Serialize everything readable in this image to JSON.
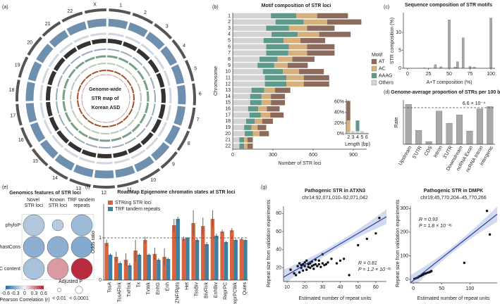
{
  "chart_data": [
    {
      "type": "circos",
      "panel_label": "(a)",
      "title": "Genome-wide STR map of Korean ASD",
      "categories": [
        "1",
        "2",
        "3",
        "4",
        "5",
        "6",
        "7",
        "8",
        "9",
        "10",
        "11",
        "12",
        "13",
        "14",
        "15",
        "16",
        "17",
        "18",
        "19",
        "20",
        "21",
        "22",
        "X"
      ]
    },
    {
      "type": "bar",
      "orientation": "horizontal",
      "stacked": true,
      "panel_label": "(b)",
      "title": "Motif composition of STR loci",
      "xlabel": "Number of STR loci",
      "ylabel": "Chromosome",
      "legend_title": "Motif",
      "categories": [
        "1",
        "2",
        "3",
        "4",
        "5",
        "6",
        "7",
        "8",
        "9",
        "10",
        "11",
        "12",
        "13",
        "14",
        "15",
        "16",
        "17",
        "18",
        "19",
        "20",
        "21",
        "22"
      ],
      "series": [
        {
          "name": "AT",
          "color": "#8c6b5d",
          "values": [
            230,
            255,
            205,
            235,
            185,
            205,
            205,
            165,
            150,
            185,
            190,
            190,
            115,
            105,
            105,
            95,
            100,
            80,
            65,
            70,
            40,
            40
          ]
        },
        {
          "name": "AC",
          "color": "#d8b07c",
          "values": [
            155,
            175,
            135,
            160,
            125,
            135,
            140,
            110,
            100,
            120,
            130,
            130,
            80,
            70,
            70,
            65,
            70,
            55,
            45,
            50,
            25,
            25
          ]
        },
        {
          "name": "AAAG",
          "color": "#5e9a8b",
          "values": [
            190,
            210,
            170,
            195,
            150,
            170,
            165,
            135,
            125,
            150,
            160,
            160,
            95,
            85,
            85,
            75,
            85,
            65,
            55,
            60,
            35,
            35
          ]
        },
        {
          "name": "Others",
          "color": "#d3d3d3",
          "values": [
            285,
            320,
            250,
            290,
            230,
            250,
            250,
            200,
            185,
            225,
            240,
            240,
            140,
            130,
            130,
            115,
            125,
            100,
            85,
            90,
            50,
            50
          ]
        }
      ],
      "xlim": [
        0,
        1000
      ],
      "xticks": [
        0,
        300,
        600,
        900
      ]
    },
    {
      "type": "bar",
      "stacked": true,
      "xlabel": "Length (bp)",
      "categories": [
        "2",
        "3",
        "4",
        "5",
        "6"
      ],
      "series": [
        {
          "color": "#8c6b5d",
          "values": [
            37,
            0,
            0,
            0,
            0
          ]
        },
        {
          "color": "#d8b07c",
          "values": [
            22,
            0,
            0,
            0,
            0
          ]
        },
        {
          "color": "#5e9a8b",
          "values": [
            0,
            0,
            20,
            0,
            0
          ]
        },
        {
          "color": "#d3d3d3",
          "values": [
            3,
            5,
            5,
            5,
            2
          ]
        }
      ],
      "ylim": [
        0,
        65
      ],
      "yticks": [
        {
          "value": 0,
          "label": "0%"
        },
        {
          "value": 20,
          "label": "20%"
        },
        {
          "value": 40,
          "label": "40%"
        },
        {
          "value": 60,
          "label": "60%"
        }
      ]
    },
    {
      "type": "bar",
      "panel_label": "(c)",
      "title": "Sequence composition of STR motifs",
      "xlabel": "A+T composition (%)",
      "ylabel": "STR composition (%)",
      "color": "#a9a9a9",
      "x": [
        20,
        33.3,
        40,
        50,
        57.1,
        60,
        66.7,
        75,
        80,
        100
      ],
      "values": [
        0.1,
        1.0,
        0.4,
        13.5,
        0.3,
        1.8,
        8.5,
        0.5,
        0.3,
        14
      ],
      "xlim": [
        -5,
        105
      ],
      "xticks": [
        0,
        25,
        50,
        75,
        100
      ],
      "ylim": [
        0,
        15.5
      ],
      "yticks": [
        0,
        5,
        10
      ]
    },
    {
      "type": "bar",
      "panel_label": "(d)",
      "title": "Genome-average proportion of STRs per 100 bp",
      "ylabel": "Rate",
      "color": "#a9a9a9",
      "categories": [
        "Upstream",
        "5'UTR",
        "CDS",
        "Intron",
        "3'UTR",
        "Downstream",
        "ncRNA Exon",
        "ncRNA Intron",
        "Intergenic"
      ],
      "values": [
        0.00072,
        0.00025,
        5e-05,
        0.0006,
        0.00038,
        0.00053,
        0.00024,
        0.00064,
        0.00068
      ],
      "ylim": [
        0,
        0.0008
      ],
      "reference": {
        "value": 0.00066,
        "label": "6.6 × 10⁻⁴"
      }
    },
    {
      "type": "bubble",
      "panel_label": "(e)",
      "title": "Genomics features of STR loci",
      "columns": [
        "Novel STR loci",
        "Known STR loci",
        "TRF tandem repeats"
      ],
      "rows": [
        "phyloP",
        "phastCons",
        "GC content"
      ],
      "values": [
        [
          -0.2,
          -0.18,
          -0.25
        ],
        [
          -0.3,
          -0.3,
          -0.32
        ],
        [
          -0.22,
          0.25,
          0.55
        ]
      ],
      "pvalues": [
        [
          1e-05,
          0.005,
          1e-05
        ],
        [
          1e-05,
          1e-05,
          1e-05
        ],
        [
          1e-05,
          1e-05,
          1e-05
        ]
      ],
      "color_scale": {
        "label": "Pearson Correlation (r)",
        "ticks": [
          -0.6,
          -0.3,
          0,
          0.3,
          0.6
        ],
        "colors": [
          "#2166ac",
          "#f7f7f7",
          "#b2182b"
        ]
      },
      "size_legend": {
        "label": "Adjusted P",
        "values": [
          0.01,
          0.0001
        ],
        "labels": [
          "< 0.01",
          "< 0.0001"
        ]
      }
    },
    {
      "type": "bar",
      "panel_label": "(f)",
      "title": "RoadMap Epigenome chromatin states at STR loci",
      "ylabel": "Odds ratio",
      "categories": [
        "TssA",
        "TssAFlnk",
        "TxFlnk",
        "Tx",
        "TxWk",
        "EnhG",
        "Enh",
        "ZNF/Rpts",
        "Het",
        "TssBiv",
        "BivFlnk",
        "EnhBiv",
        "ReprPC",
        "ReprPCWk",
        "Quies"
      ],
      "series": [
        {
          "name": "STRing STR loci",
          "color": "#d9633c",
          "values": [
            0.88,
            0.55,
            0.48,
            0.7,
            0.95,
            0.62,
            0.55,
            1.3,
            0.98,
            1.35,
            1.28,
            1.45,
            1.15,
            1.18,
            0.97
          ],
          "errors": [
            0.08,
            0.12,
            0.15,
            0.25,
            0.08,
            0.15,
            0.2,
            0.15,
            0.05,
            0.3,
            0.2,
            0.2,
            0.05,
            0.05,
            0.02
          ]
        },
        {
          "name": "TRF tandem repeats",
          "color": "#3f7f9f",
          "values": [
            0.6,
            0.4,
            0.35,
            0.6,
            0.6,
            0.48,
            0.5,
            1.45,
            1.0,
            0.95,
            0.85,
            1.05,
            0.9,
            0.95,
            0.95
          ],
          "errors": [
            0.03,
            0.04,
            0.05,
            0.03,
            0.03,
            0.04,
            0.03,
            0.05,
            0.02,
            0.05,
            0.05,
            0.05,
            0.03,
            0.03,
            0.01
          ]
        }
      ],
      "ylim": [
        0,
        1.8
      ],
      "yticks": [
        0,
        1
      ],
      "reference": 1
    },
    {
      "type": "scatter",
      "panel_label": "(g)",
      "title": "Pathogenic STR in ATXN3",
      "subtitle": "chr14:92,071,010–92,071,042",
      "xlabel": "Estimated number of repeat units",
      "ylabel": "Repeat size from validation experiments",
      "x": [
        12,
        14,
        15,
        16,
        17,
        17,
        18,
        18,
        19,
        19,
        20,
        20,
        21,
        21,
        22,
        22,
        23,
        23,
        24,
        24,
        25,
        25,
        26,
        26,
        27,
        28,
        28,
        29,
        30,
        30,
        31,
        32,
        33,
        35,
        38,
        40,
        42,
        45,
        50,
        55,
        62,
        60
      ],
      "y": [
        18,
        14,
        12,
        22,
        15,
        25,
        20,
        23,
        17,
        24,
        22,
        26,
        18,
        28,
        21,
        24,
        20,
        25,
        22,
        27,
        23,
        19,
        24,
        29,
        22,
        24,
        28,
        21,
        25,
        35,
        23,
        24,
        26,
        30,
        25,
        28,
        30,
        12,
        45,
        52,
        75,
        58
      ],
      "fit": {
        "slope": 1.15,
        "intercept": 0.5
      },
      "annotations": [
        "R = 0.81",
        "P = 1.2 × 10⁻¹⁵"
      ],
      "xlim": [
        8,
        66
      ],
      "xticks": [
        10,
        20,
        30,
        40,
        50,
        60
      ],
      "ylim": [
        5,
        88
      ],
      "yticks": [
        20,
        40,
        60,
        80
      ]
    },
    {
      "type": "scatter",
      "title": "Pathogenic STR in DMPK",
      "subtitle": "chr19:45,770,204–45,770,266",
      "xlabel": "Estimated number of repeat units",
      "ylabel": "Repeat size from validation experiments",
      "x": [
        2,
        5,
        8,
        10,
        12,
        14,
        15,
        17,
        18,
        20,
        22,
        25,
        28,
        30,
        32,
        90,
        130,
        135
      ],
      "y": [
        2,
        5,
        8,
        12,
        14,
        16,
        18,
        20,
        22,
        24,
        25,
        28,
        30,
        32,
        35,
        70,
        290,
        190
      ],
      "fit": {
        "slope": 1.9,
        "intercept": -5
      },
      "annotations": [
        "R = 0.93",
        "P = 1.8 × 10⁻³⁶"
      ],
      "xlim": [
        -5,
        148
      ],
      "xticks": [
        0,
        50,
        100
      ],
      "ylim": [
        -15,
        310
      ],
      "yticks": [
        0,
        100,
        200,
        300
      ]
    }
  ]
}
